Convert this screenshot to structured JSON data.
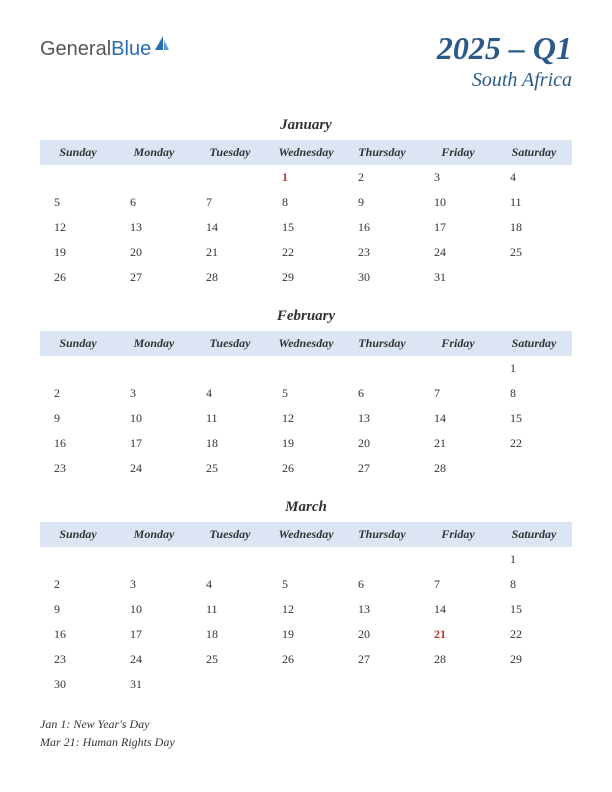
{
  "logo": {
    "part1": "General",
    "part2": "Blue"
  },
  "title": {
    "main": "2025 – Q1",
    "sub": "South Africa"
  },
  "header_bg": "#dbe5f4",
  "holiday_color": "#c0392b",
  "title_color": "#2a5a8a",
  "day_headers": [
    "Sunday",
    "Monday",
    "Tuesday",
    "Wednesday",
    "Thursday",
    "Friday",
    "Saturday"
  ],
  "months": [
    {
      "name": "January",
      "weeks": [
        [
          {
            "d": ""
          },
          {
            "d": ""
          },
          {
            "d": ""
          },
          {
            "d": "1",
            "h": true
          },
          {
            "d": "2"
          },
          {
            "d": "3"
          },
          {
            "d": "4"
          }
        ],
        [
          {
            "d": "5"
          },
          {
            "d": "6"
          },
          {
            "d": "7"
          },
          {
            "d": "8"
          },
          {
            "d": "9"
          },
          {
            "d": "10"
          },
          {
            "d": "11"
          }
        ],
        [
          {
            "d": "12"
          },
          {
            "d": "13"
          },
          {
            "d": "14"
          },
          {
            "d": "15"
          },
          {
            "d": "16"
          },
          {
            "d": "17"
          },
          {
            "d": "18"
          }
        ],
        [
          {
            "d": "19"
          },
          {
            "d": "20"
          },
          {
            "d": "21"
          },
          {
            "d": "22"
          },
          {
            "d": "23"
          },
          {
            "d": "24"
          },
          {
            "d": "25"
          }
        ],
        [
          {
            "d": "26"
          },
          {
            "d": "27"
          },
          {
            "d": "28"
          },
          {
            "d": "29"
          },
          {
            "d": "30"
          },
          {
            "d": "31"
          },
          {
            "d": ""
          }
        ]
      ]
    },
    {
      "name": "February",
      "weeks": [
        [
          {
            "d": ""
          },
          {
            "d": ""
          },
          {
            "d": ""
          },
          {
            "d": ""
          },
          {
            "d": ""
          },
          {
            "d": ""
          },
          {
            "d": "1"
          }
        ],
        [
          {
            "d": "2"
          },
          {
            "d": "3"
          },
          {
            "d": "4"
          },
          {
            "d": "5"
          },
          {
            "d": "6"
          },
          {
            "d": "7"
          },
          {
            "d": "8"
          }
        ],
        [
          {
            "d": "9"
          },
          {
            "d": "10"
          },
          {
            "d": "11"
          },
          {
            "d": "12"
          },
          {
            "d": "13"
          },
          {
            "d": "14"
          },
          {
            "d": "15"
          }
        ],
        [
          {
            "d": "16"
          },
          {
            "d": "17"
          },
          {
            "d": "18"
          },
          {
            "d": "19"
          },
          {
            "d": "20"
          },
          {
            "d": "21"
          },
          {
            "d": "22"
          }
        ],
        [
          {
            "d": "23"
          },
          {
            "d": "24"
          },
          {
            "d": "25"
          },
          {
            "d": "26"
          },
          {
            "d": "27"
          },
          {
            "d": "28"
          },
          {
            "d": ""
          }
        ]
      ]
    },
    {
      "name": "March",
      "weeks": [
        [
          {
            "d": ""
          },
          {
            "d": ""
          },
          {
            "d": ""
          },
          {
            "d": ""
          },
          {
            "d": ""
          },
          {
            "d": ""
          },
          {
            "d": "1"
          }
        ],
        [
          {
            "d": "2"
          },
          {
            "d": "3"
          },
          {
            "d": "4"
          },
          {
            "d": "5"
          },
          {
            "d": "6"
          },
          {
            "d": "7"
          },
          {
            "d": "8"
          }
        ],
        [
          {
            "d": "9"
          },
          {
            "d": "10"
          },
          {
            "d": "11"
          },
          {
            "d": "12"
          },
          {
            "d": "13"
          },
          {
            "d": "14"
          },
          {
            "d": "15"
          }
        ],
        [
          {
            "d": "16"
          },
          {
            "d": "17"
          },
          {
            "d": "18"
          },
          {
            "d": "19"
          },
          {
            "d": "20"
          },
          {
            "d": "21",
            "h": true
          },
          {
            "d": "22"
          }
        ],
        [
          {
            "d": "23"
          },
          {
            "d": "24"
          },
          {
            "d": "25"
          },
          {
            "d": "26"
          },
          {
            "d": "27"
          },
          {
            "d": "28"
          },
          {
            "d": "29"
          }
        ],
        [
          {
            "d": "30"
          },
          {
            "d": "31"
          },
          {
            "d": ""
          },
          {
            "d": ""
          },
          {
            "d": ""
          },
          {
            "d": ""
          },
          {
            "d": ""
          }
        ]
      ]
    }
  ],
  "holidays": [
    "Jan 1: New Year's Day",
    "Mar 21: Human Rights Day"
  ]
}
